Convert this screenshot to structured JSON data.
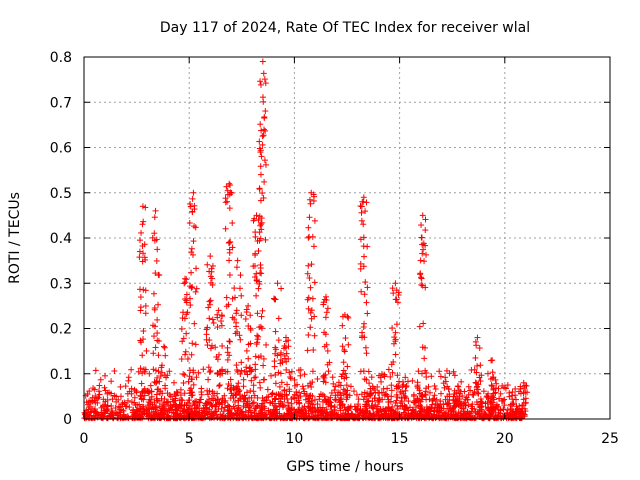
{
  "chart_data": {
    "type": "scatter",
    "title": "Day 117 of 2024, Rate Of TEC Index for receiver wlal",
    "xlabel": "GPS time / hours",
    "ylabel": "ROTI / TECUs",
    "xlim": [
      0,
      25
    ],
    "ylim": [
      0,
      0.8
    ],
    "xticks": [
      "0",
      "5",
      "10",
      "15",
      "20",
      "25"
    ],
    "yticks": [
      "0",
      "0.1",
      "0.2",
      "0.3",
      "0.4",
      "0.5",
      "0.6",
      "0.7",
      "0.8"
    ],
    "grid": true,
    "marker": "+",
    "color": "#ff0000",
    "data_extent_hours": [
      0,
      21
    ],
    "baseline_level": 0.05,
    "spikes": [
      {
        "x": 2.8,
        "ymax": 0.47
      },
      {
        "x": 3.4,
        "ymax": 0.46
      },
      {
        "x": 3.8,
        "ymax": 0.16
      },
      {
        "x": 4.8,
        "ymax": 0.31
      },
      {
        "x": 5.2,
        "ymax": 0.5
      },
      {
        "x": 6.0,
        "ymax": 0.36
      },
      {
        "x": 6.4,
        "ymax": 0.24
      },
      {
        "x": 6.9,
        "ymax": 0.52
      },
      {
        "x": 7.3,
        "ymax": 0.35
      },
      {
        "x": 7.8,
        "ymax": 0.25
      },
      {
        "x": 8.2,
        "ymax": 0.45
      },
      {
        "x": 8.5,
        "ymax": 0.79
      },
      {
        "x": 9.2,
        "ymax": 0.3
      },
      {
        "x": 9.6,
        "ymax": 0.18
      },
      {
        "x": 10.8,
        "ymax": 0.5
      },
      {
        "x": 11.5,
        "ymax": 0.27
      },
      {
        "x": 12.4,
        "ymax": 0.23
      },
      {
        "x": 13.3,
        "ymax": 0.49
      },
      {
        "x": 14.8,
        "ymax": 0.3
      },
      {
        "x": 16.1,
        "ymax": 0.45
      },
      {
        "x": 18.7,
        "ymax": 0.18
      },
      {
        "x": 19.4,
        "ymax": 0.13
      },
      {
        "x": 20.9,
        "ymax": 0.08
      }
    ]
  }
}
